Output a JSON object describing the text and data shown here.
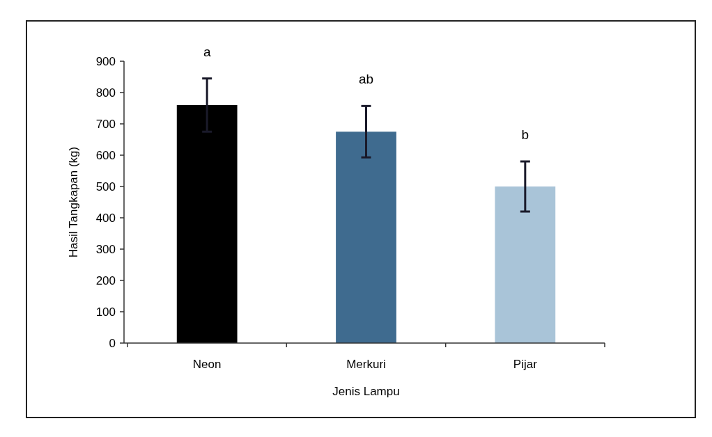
{
  "chart_data": {
    "type": "bar",
    "xlabel": "Jenis Lampu",
    "ylabel": "Hasil Tangkapan (kg)",
    "categories": [
      "Neon",
      "Merkuri",
      "Pijar"
    ],
    "values": [
      760,
      675,
      500
    ],
    "colors": [
      "#000000",
      "#3f6b8f",
      "#a9c4d8"
    ],
    "errors": [
      85,
      82,
      80
    ],
    "ylim": [
      0,
      900
    ],
    "yticks": [
      0,
      100,
      200,
      300,
      400,
      500,
      600,
      700,
      800,
      900
    ],
    "grid": false,
    "annotations": [
      "a",
      "ab",
      "b"
    ]
  }
}
